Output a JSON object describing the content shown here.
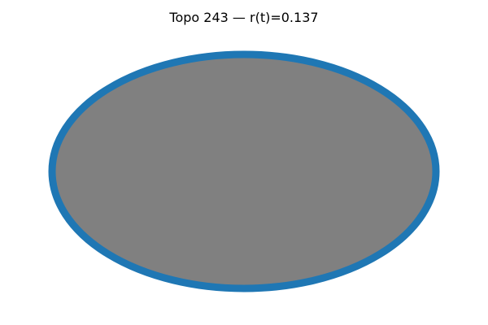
{
  "title": "Topo 243 — r(t)=0.137",
  "shape": {
    "kind": "ellipse",
    "fill_color": "#808080",
    "outline_color": "#1f77b4"
  }
}
